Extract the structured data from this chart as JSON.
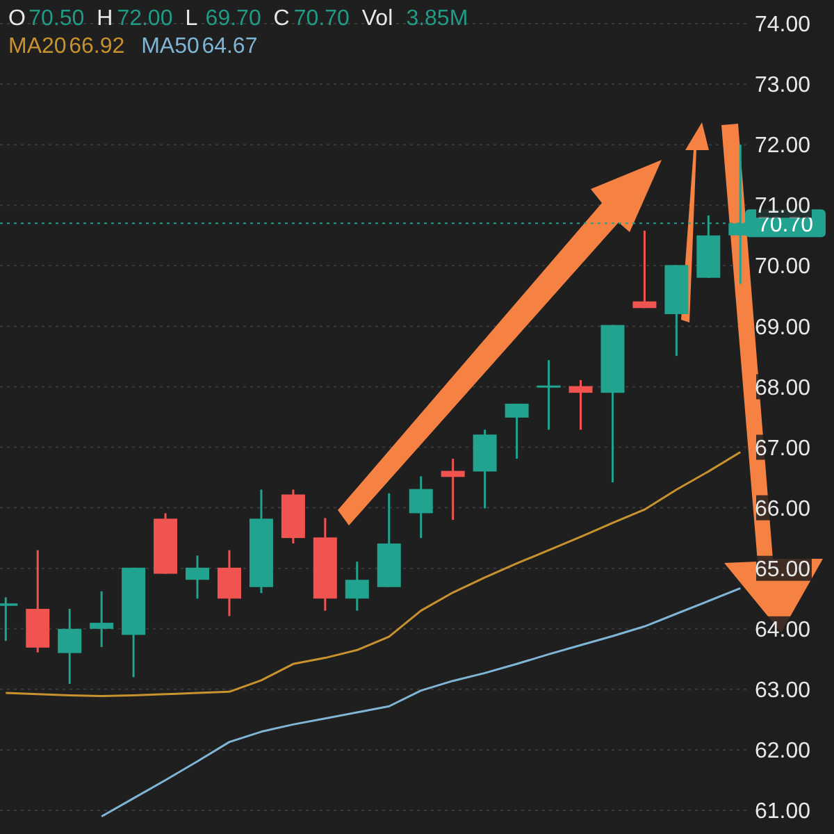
{
  "chart_data": {
    "type": "candlestick",
    "annotations": [
      "O",
      "70.50",
      "H",
      "72.00",
      "L",
      "69.70",
      "C",
      "70.70",
      "Vol",
      "3.85M",
      "66.92",
      "64.67"
    ],
    "categories": [
      null,
      null,
      null,
      null,
      null,
      null,
      null,
      null,
      null,
      null,
      null,
      null,
      null,
      null,
      null,
      null,
      null,
      null,
      null,
      null,
      null,
      null,
      null,
      null
    ],
    "ohlc": [
      [
        64.38,
        64.52,
        63.8,
        64.42
      ],
      [
        64.33,
        65.3,
        63.61,
        63.69
      ],
      [
        63.6,
        64.33,
        63.09,
        64.0
      ],
      [
        64.0,
        64.62,
        63.7,
        64.1
      ],
      [
        63.9,
        65.01,
        63.2,
        65.01
      ],
      [
        65.82,
        65.91,
        64.91,
        64.91
      ],
      [
        64.81,
        65.21,
        64.5,
        65.01
      ],
      [
        65.01,
        65.3,
        64.21,
        64.5
      ],
      [
        64.69,
        66.3,
        64.59,
        65.82
      ],
      [
        66.22,
        66.3,
        65.41,
        65.5
      ],
      [
        65.51,
        65.83,
        64.3,
        64.5
      ],
      [
        64.5,
        65.11,
        64.3,
        64.81
      ],
      [
        64.69,
        66.24,
        64.69,
        65.41
      ],
      [
        65.91,
        66.52,
        65.5,
        66.31
      ],
      [
        66.61,
        66.81,
        65.8,
        66.51
      ],
      [
        66.6,
        67.29,
        65.99,
        67.21
      ],
      [
        67.49,
        67.72,
        66.81,
        67.72
      ],
      [
        68.0,
        68.44,
        67.29,
        68.02
      ],
      [
        68.01,
        68.11,
        67.29,
        67.9
      ],
      [
        67.9,
        69.02,
        66.42,
        69.02
      ],
      [
        69.41,
        70.58,
        69.3,
        69.3
      ],
      [
        69.2,
        70.01,
        68.51,
        70.01
      ],
      [
        69.8,
        70.83,
        69.8,
        70.5
      ],
      [
        70.5,
        72.0,
        69.7,
        70.7
      ]
    ],
    "colors": [
      "#22a38f",
      "#f05350",
      "#22a38f",
      "#22a38f",
      "#22a38f",
      "#f05350",
      "#22a38f",
      "#f05350",
      "#22a38f",
      "#f05350",
      "#f05350",
      "#22a38f",
      "#22a38f",
      "#22a38f",
      "#f05350",
      "#22a38f",
      "#22a38f",
      "#22a38f",
      "#f05350",
      "#22a38f",
      "#f05350",
      "#22a38f",
      "#22a38f",
      "#22a38f"
    ],
    "series": [
      {
        "name": "MA20",
        "type": "line",
        "color": "#c8922e",
        "values": [
          62.94,
          62.92,
          62.9,
          62.89,
          62.9,
          62.92,
          62.94,
          62.96,
          63.15,
          63.42,
          63.52,
          63.65,
          63.87,
          64.3,
          64.6,
          64.85,
          65.08,
          65.3,
          65.52,
          65.75,
          65.97,
          66.3,
          66.6,
          66.92
        ]
      },
      {
        "name": "MA50",
        "type": "line",
        "color": "#7fb6d6",
        "values": [
          null,
          null,
          null,
          60.9,
          61.2,
          61.5,
          61.81,
          62.13,
          62.3,
          62.42,
          62.52,
          62.62,
          62.72,
          62.98,
          63.14,
          63.27,
          63.42,
          63.58,
          63.73,
          63.88,
          64.04,
          64.25,
          64.46,
          64.67
        ]
      }
    ],
    "ylim": [
      60.61,
      74.39
    ],
    "yticks": [
      {
        "value": 61,
        "label": "61.00"
      },
      {
        "value": 62,
        "label": "62.00"
      },
      {
        "value": 63,
        "label": "63.00"
      },
      {
        "value": 64,
        "label": "64.00"
      },
      {
        "value": 65,
        "label": "65.00"
      },
      {
        "value": 66,
        "label": "66.00"
      },
      {
        "value": 67,
        "label": "67.00"
      },
      {
        "value": 68,
        "label": "68.00"
      },
      {
        "value": 69,
        "label": "69.00"
      },
      {
        "value": 70,
        "label": "70.00"
      },
      {
        "value": 71,
        "label": "71.00"
      },
      {
        "value": 72,
        "label": "72.00"
      },
      {
        "value": 73,
        "label": "73.00"
      },
      {
        "value": 74,
        "label": "74.00"
      }
    ],
    "tick_labels": "y",
    "ref_lines": [
      {
        "axis": "y",
        "value": 70.7,
        "label": "70.70",
        "color": "#22a38f",
        "line_style": "dotted"
      }
    ],
    "grid": "y",
    "legend": "top left"
  }
}
